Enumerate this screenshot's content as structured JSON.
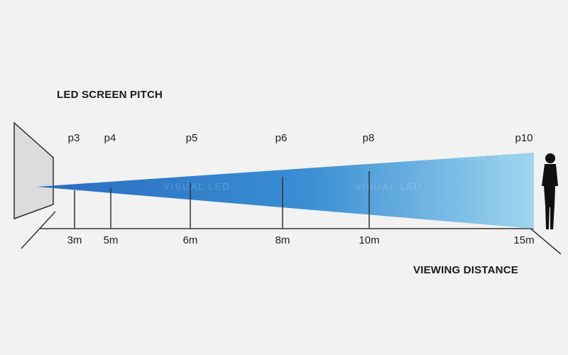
{
  "headings": {
    "top": "LED SCREEN PITCH",
    "bottom": "VIEWING DISTANCE"
  },
  "markers": [
    {
      "pitch": "p3",
      "distance": "3m"
    },
    {
      "pitch": "p4",
      "distance": "5m"
    },
    {
      "pitch": "p5",
      "distance": "6m"
    },
    {
      "pitch": "p6",
      "distance": "8m"
    },
    {
      "pitch": "p8",
      "distance": "10m"
    },
    {
      "pitch": "p10",
      "distance": "15m"
    }
  ],
  "watermark": "VISUAL LED",
  "colors": {
    "beam_start": "#2a6bc0",
    "beam_end": "#9fd6ef",
    "screen": "#dcdcdc",
    "person": "#111111"
  },
  "icons": {
    "screen": "led-screen-icon",
    "person": "person-silhouette-icon"
  }
}
